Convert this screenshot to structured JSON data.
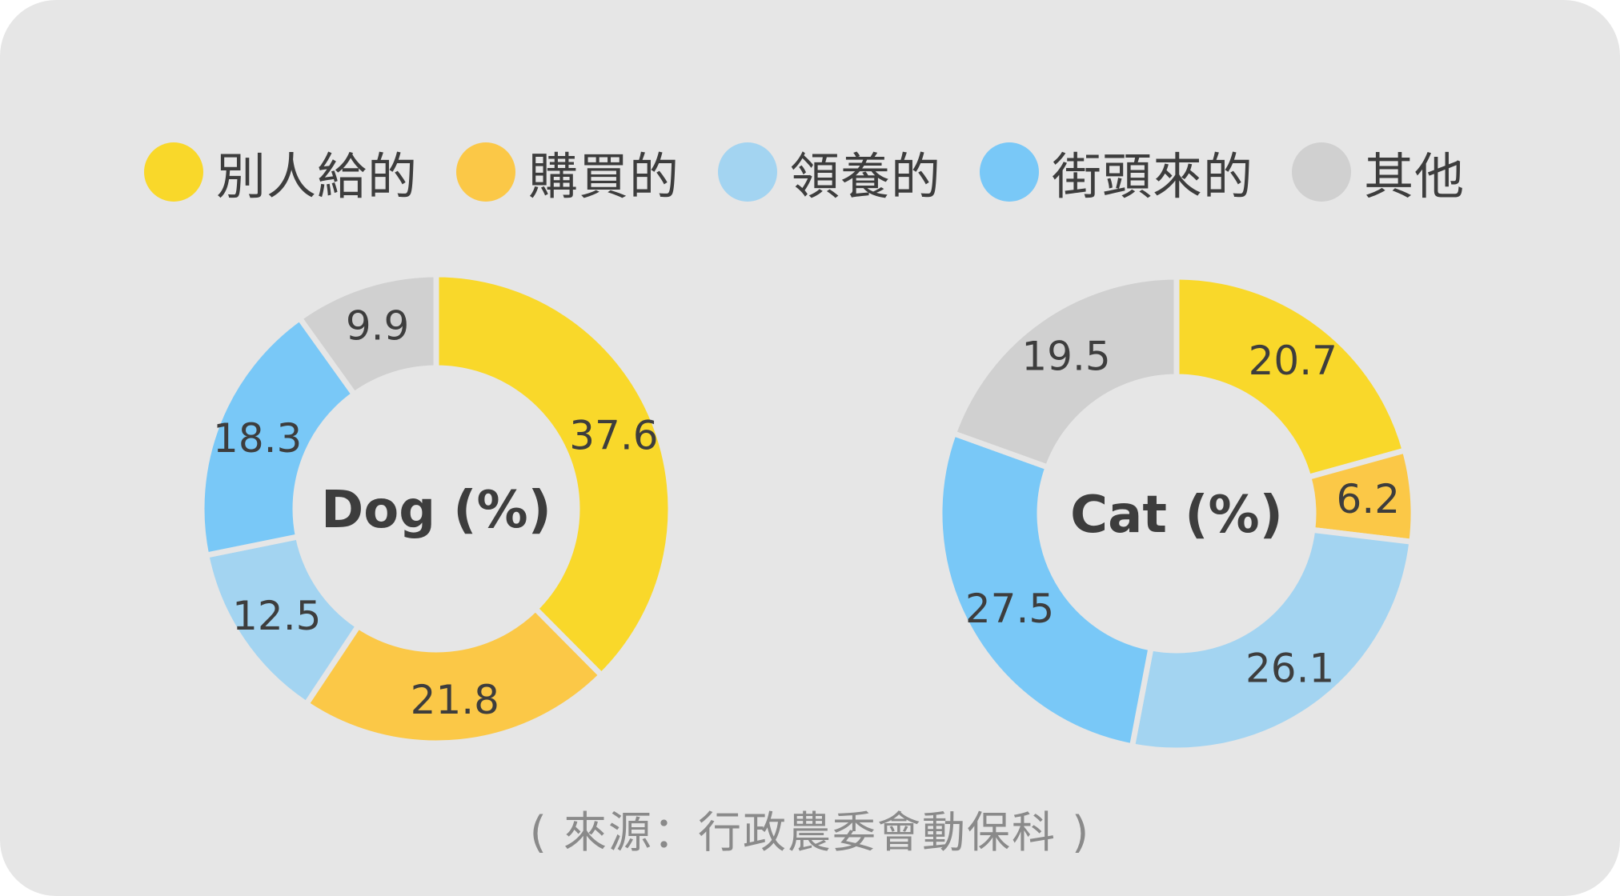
{
  "legend": [
    {
      "label": "別人給的",
      "color": "#f9d82a"
    },
    {
      "label": "購買的",
      "color": "#fbc847"
    },
    {
      "label": "領養的",
      "color": "#a3d4f1"
    },
    {
      "label": "街頭來的",
      "color": "#79c8f7"
    },
    {
      "label": "其他",
      "color": "#d0d0d0"
    }
  ],
  "chart_data": [
    {
      "type": "pie",
      "donut": true,
      "title": "Dog (%)",
      "categories": [
        "別人給的",
        "購買的",
        "領養的",
        "街頭來的",
        "其他"
      ],
      "values": [
        37.6,
        21.8,
        12.5,
        18.3,
        9.9
      ],
      "value_labels": [
        "37.6",
        "21.8",
        "12.5",
        "18.3",
        "9.9"
      ],
      "colors": [
        "#f9d82a",
        "#fbc847",
        "#a3d4f1",
        "#79c8f7",
        "#d0d0d0"
      ],
      "legend": "top"
    },
    {
      "type": "pie",
      "donut": true,
      "title": "Cat (%)",
      "categories": [
        "別人給的",
        "購買的",
        "領養的",
        "街頭來的",
        "其他"
      ],
      "values": [
        20.7,
        6.2,
        26.1,
        27.5,
        19.5
      ],
      "value_labels": [
        "20.7",
        "6.2",
        "26.1",
        "27.5",
        "19.5"
      ],
      "colors": [
        "#f9d82a",
        "#fbc847",
        "#a3d4f1",
        "#79c8f7",
        "#d0d0d0"
      ],
      "legend": "top"
    }
  ],
  "source": "( 來源：行政農委會動保科 )"
}
